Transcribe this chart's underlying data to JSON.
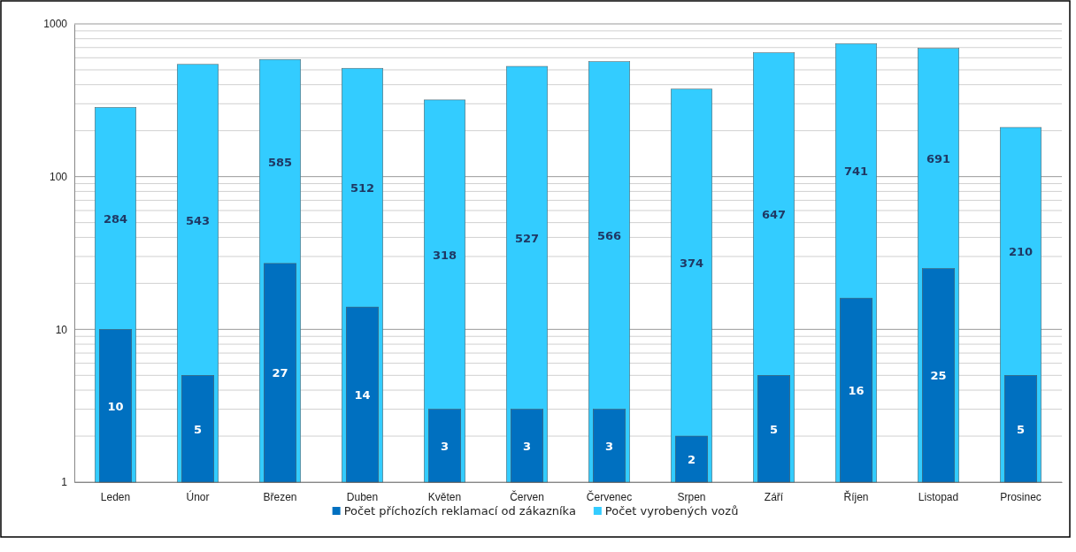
{
  "chart_data": {
    "type": "bar",
    "categories": [
      "Leden",
      "Únor",
      "Březen",
      "Duben",
      "Květen",
      "Červen",
      "Červenec",
      "Srpen",
      "Září",
      "Říjen",
      "Listopad",
      "Prosinec"
    ],
    "series": [
      {
        "name": "Počet příchozích reklamací od zákazníka",
        "color": "#0070c0",
        "values": [
          10,
          5,
          27,
          14,
          3,
          3,
          3,
          2,
          5,
          16,
          25,
          5
        ]
      },
      {
        "name": "Počet vyrobených vozů",
        "color": "#33ccff",
        "values": [
          284,
          543,
          585,
          512,
          318,
          527,
          566,
          374,
          647,
          741,
          691,
          210
        ]
      }
    ],
    "log": true,
    "ylim": [
      1,
      1000
    ],
    "yticks": [
      1,
      {
        "value": 2,
        "label": null
      },
      {
        "value": 3,
        "label": null
      },
      {
        "value": 4,
        "label": null
      },
      {
        "value": 5,
        "label": null
      },
      {
        "value": 6,
        "label": null
      },
      {
        "value": 7,
        "label": null
      },
      {
        "value": 8,
        "label": null
      },
      {
        "value": 9,
        "label": null
      },
      10,
      {
        "value": 20,
        "label": null
      },
      {
        "value": 30,
        "label": null
      },
      {
        "value": 40,
        "label": null
      },
      {
        "value": 50,
        "label": null
      },
      {
        "value": 60,
        "label": null
      },
      {
        "value": 70,
        "label": null
      },
      {
        "value": 80,
        "label": null
      },
      {
        "value": 90,
        "label": null
      },
      100,
      {
        "value": 200,
        "label": null
      },
      {
        "value": 300,
        "label": null
      },
      {
        "value": 400,
        "label": null
      },
      {
        "value": 500,
        "label": null
      },
      {
        "value": 600,
        "label": null
      },
      {
        "value": 700,
        "label": null
      },
      {
        "value": 800,
        "label": null
      },
      {
        "value": 900,
        "label": null
      },
      1000
    ],
    "grid": "y",
    "legend": "bottom",
    "data_labels": true
  }
}
